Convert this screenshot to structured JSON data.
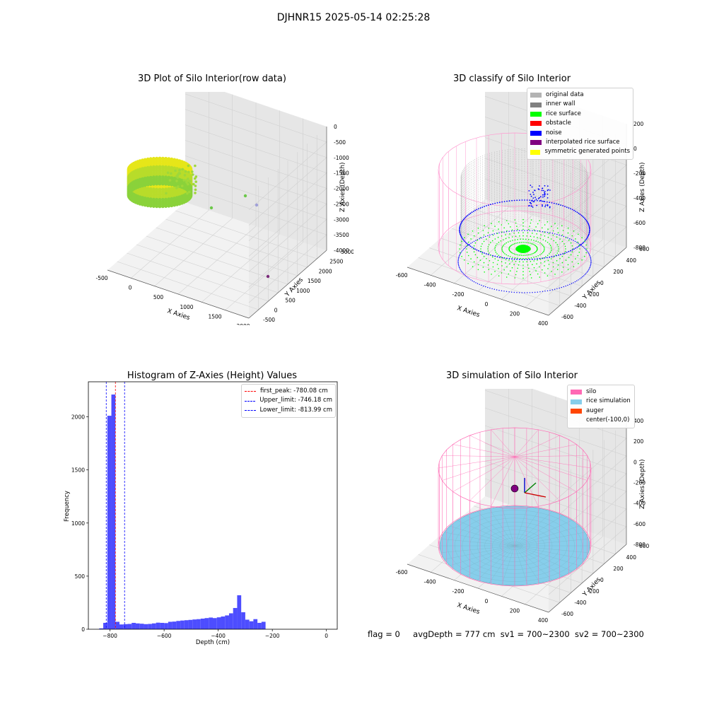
{
  "suptitle": "DJHNR15 2025-05-14 02:25:28",
  "status": {
    "flag": "flag = 0",
    "avg_depth": "avgDepth = 777 cm",
    "sv1": "sv1 = 700~2300",
    "sv2": "sv2 = 700~2300"
  },
  "colors": {
    "original": "#b3b3b3",
    "inner_wall": "#808080",
    "rice_surface": "#00ff00",
    "obstacle": "#ff0000",
    "noise": "#0000ff",
    "interpolated": "#800080",
    "symmetric": "#ffff00",
    "silo": "#ff69b4",
    "rice_sim": "#87ceeb",
    "auger": "#ff4500",
    "hist_bar": "#4d4dff",
    "peak_line": "#ff0000",
    "limit_line": "#0000ff"
  },
  "chart_data": [
    {
      "type": "scatter",
      "title": "3D Plot of Silo Interior(row data)",
      "xlabel": "X Axies",
      "ylabel": "Y Axies",
      "zlabel": "Z Axies (Depth)",
      "x_ticks": [
        "-500",
        "0",
        "500",
        "1000",
        "1500",
        "2000"
      ],
      "y_ticks": [
        "-500",
        "0",
        "500",
        "1000",
        "1500",
        "2000",
        "2500",
        "3000"
      ],
      "z_ticks": [
        "0",
        "-500",
        "-1000",
        "-1500",
        "-2000",
        "-2500",
        "-3000",
        "-3500",
        "-4000"
      ],
      "xlim": [
        -600,
        2100
      ],
      "ylim": [
        -600,
        3200
      ],
      "zlim": [
        -4000,
        0
      ]
    },
    {
      "type": "scatter",
      "title": "3D classify of Silo Interior",
      "xlabel": "X Axies",
      "ylabel": "Y Axies",
      "zlabel": "Z Axies (Depth)",
      "x_ticks": [
        "-600",
        "-400",
        "-200",
        "0",
        "200",
        "400"
      ],
      "y_ticks": [
        "-600",
        "-400",
        "-200",
        "0",
        "200",
        "400",
        "600"
      ],
      "z_ticks": [
        "200",
        "0",
        "-200",
        "-400",
        "-600",
        "-800"
      ],
      "legend": [
        "original data",
        "inner wall",
        "rice surface",
        "obstacle",
        "noise",
        "interpolated rice surface",
        "symmetric generated points"
      ]
    },
    {
      "type": "bar",
      "title": "Histogram of Z-Axies (Height) Values",
      "xlabel": "Depth (cm)",
      "ylabel": "Frequency",
      "xlim": [
        -880,
        40
      ],
      "ylim": [
        0,
        2330
      ],
      "x_ticks": [
        -800,
        -600,
        -400,
        -200,
        0
      ],
      "y_ticks": [
        0,
        500,
        1000,
        1500,
        2000
      ],
      "bin_width": 15,
      "bins_start": -840,
      "values": [
        8,
        60,
        2010,
        2210,
        70,
        45,
        48,
        50,
        60,
        55,
        52,
        48,
        50,
        55,
        62,
        60,
        58,
        70,
        72,
        78,
        82,
        85,
        88,
        92,
        95,
        100,
        105,
        110,
        105,
        112,
        120,
        130,
        150,
        200,
        320,
        160,
        90,
        75,
        95,
        60,
        70
      ],
      "lines": [
        {
          "label": "first_peak: -780.08 cm",
          "x": -780.08,
          "style": "peak"
        },
        {
          "label": "Upper_limit: -746.18 cm",
          "x": -746.18,
          "style": "limit"
        },
        {
          "label": "Lower_limit: -813.99 cm",
          "x": -813.99,
          "style": "limit"
        }
      ]
    },
    {
      "type": "scatter",
      "title": "3D simulation of Silo Interior",
      "xlabel": "X Axies",
      "ylabel": "Y Axies",
      "zlabel": "Z Axies (Depth)",
      "x_ticks": [
        "-600",
        "-400",
        "-200",
        "0",
        "200",
        "400"
      ],
      "y_ticks": [
        "-600",
        "-400",
        "-200",
        "0",
        "200",
        "400",
        "600"
      ],
      "z_ticks": [
        "400",
        "200",
        "0",
        "-200",
        "-400",
        "-600",
        "-800"
      ],
      "legend": [
        "silo",
        "rice simulation",
        "auger",
        "center(-100,0)"
      ]
    }
  ]
}
